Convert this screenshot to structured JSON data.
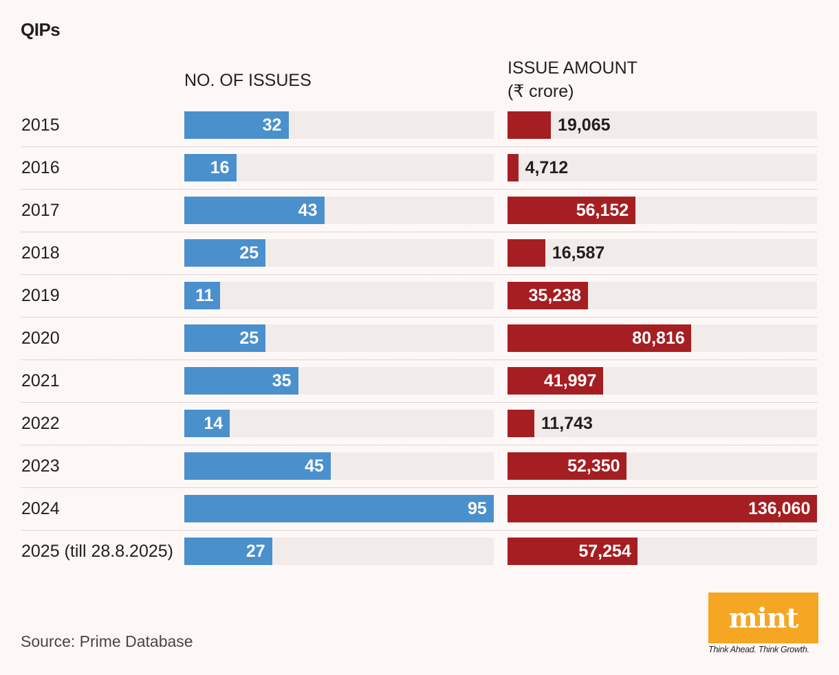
{
  "title": "QIPs",
  "chart_data": {
    "type": "bar",
    "title": "QIPs",
    "categories": [
      "2015",
      "2016",
      "2017",
      "2018",
      "2019",
      "2020",
      "2021",
      "2022",
      "2023",
      "2024",
      "2025 (till 28.8.2025)"
    ],
    "series": [
      {
        "name": "NO. OF ISSUES",
        "color": "#4a90cd",
        "values": [
          32,
          16,
          43,
          25,
          11,
          25,
          35,
          14,
          45,
          95,
          27
        ],
        "labels": [
          "32",
          "16",
          "43",
          "25",
          "11",
          "25",
          "35",
          "14",
          "45",
          "95",
          "27"
        ],
        "max": 95
      },
      {
        "name": "ISSUE AMOUNT (₹ crore)",
        "color": "#a51e22",
        "values": [
          19065,
          4712,
          56152,
          16587,
          35238,
          80816,
          41997,
          11743,
          52350,
          136060,
          57254
        ],
        "labels": [
          "19,065",
          "4,712",
          "56,152",
          "16,587",
          "35,238",
          "80,816",
          "41,997",
          "11,743",
          "52,350",
          "136,060",
          "57,254"
        ],
        "max": 136060
      }
    ],
    "orientation": "horizontal"
  },
  "headers": {
    "issues": "NO. OF ISSUES",
    "amount_line1": "ISSUE AMOUNT",
    "amount_line2": "(₹ crore)"
  },
  "source": "Source: Prime Database",
  "logo": {
    "word": "mint",
    "tagline": "Think Ahead. Think Growth.",
    "color": "#f5a623"
  }
}
